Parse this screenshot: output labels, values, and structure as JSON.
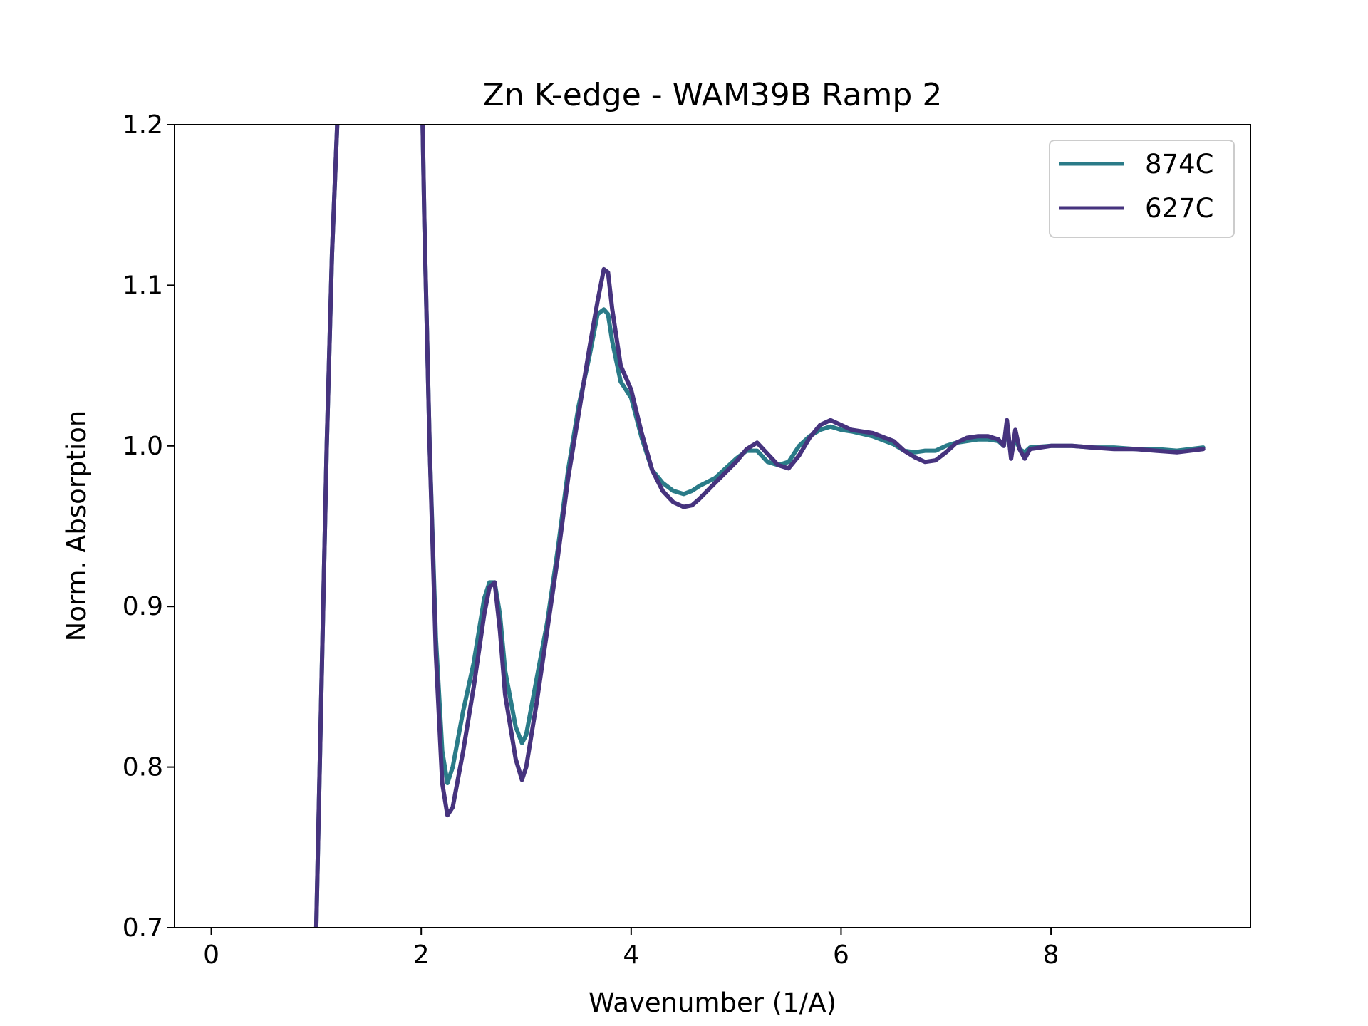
{
  "chart_data": {
    "type": "line",
    "title": "Zn K-edge - WAM39B Ramp 2",
    "xlabel": "Wavenumber (1/A)",
    "ylabel": "Norm. Absorption",
    "xlim": [
      -0.35,
      9.9
    ],
    "ylim": [
      0.7,
      1.2
    ],
    "xticks": [
      0,
      2,
      4,
      6,
      8
    ],
    "xtick_labels": [
      "0",
      "2",
      "4",
      "6",
      "8"
    ],
    "yticks": [
      0.7,
      0.8,
      0.9,
      1.0,
      1.1,
      1.2
    ],
    "ytick_labels": [
      "0.7",
      "0.8",
      "0.9",
      "1.0",
      "1.1",
      "1.2"
    ],
    "grid": false,
    "legend_position": "top-right",
    "legend": [
      "874C",
      "627C"
    ],
    "series": [
      {
        "name": "874C",
        "color": "#2a7b88",
        "x": [
          1.0,
          1.05,
          1.1,
          1.15,
          1.2,
          1.23,
          2.0,
          2.03,
          2.08,
          2.14,
          2.2,
          2.25,
          2.3,
          2.4,
          2.5,
          2.6,
          2.65,
          2.7,
          2.75,
          2.8,
          2.9,
          2.96,
          3.0,
          3.1,
          3.2,
          3.3,
          3.4,
          3.5,
          3.6,
          3.68,
          3.74,
          3.78,
          3.82,
          3.9,
          4.0,
          4.1,
          4.2,
          4.3,
          4.4,
          4.5,
          4.58,
          4.65,
          4.8,
          5.0,
          5.1,
          5.2,
          5.3,
          5.4,
          5.5,
          5.6,
          5.7,
          5.8,
          5.9,
          6.0,
          6.1,
          6.3,
          6.5,
          6.6,
          6.7,
          6.8,
          6.9,
          7.0,
          7.1,
          7.2,
          7.3,
          7.4,
          7.5,
          7.55,
          7.58,
          7.62,
          7.66,
          7.7,
          7.75,
          7.8,
          8.0,
          8.2,
          8.4,
          8.6,
          8.8,
          9.0,
          9.2,
          9.45
        ],
        "y": [
          0.7,
          0.85,
          1.0,
          1.12,
          1.2,
          1.25,
          1.25,
          1.14,
          1.0,
          0.88,
          0.81,
          0.79,
          0.8,
          0.835,
          0.865,
          0.905,
          0.915,
          0.915,
          0.895,
          0.86,
          0.825,
          0.815,
          0.82,
          0.855,
          0.89,
          0.935,
          0.985,
          1.025,
          1.055,
          1.082,
          1.085,
          1.082,
          1.065,
          1.04,
          1.03,
          1.005,
          0.985,
          0.977,
          0.972,
          0.97,
          0.972,
          0.975,
          0.98,
          0.992,
          0.997,
          0.997,
          0.99,
          0.988,
          0.99,
          1.0,
          1.006,
          1.01,
          1.012,
          1.01,
          1.009,
          1.006,
          1.001,
          0.997,
          0.996,
          0.997,
          0.997,
          1.0,
          1.002,
          1.003,
          1.004,
          1.004,
          1.003,
          1.0,
          1.012,
          0.994,
          1.005,
          0.998,
          0.996,
          0.999,
          1.0,
          1.0,
          0.999,
          0.999,
          0.998,
          0.998,
          0.997,
          0.999
        ]
      },
      {
        "name": "627C",
        "color": "#46337e",
        "x": [
          1.0,
          1.05,
          1.1,
          1.15,
          1.2,
          1.23,
          2.0,
          2.03,
          2.08,
          2.14,
          2.2,
          2.25,
          2.3,
          2.4,
          2.5,
          2.6,
          2.65,
          2.7,
          2.75,
          2.8,
          2.9,
          2.96,
          3.0,
          3.1,
          3.2,
          3.3,
          3.4,
          3.5,
          3.6,
          3.68,
          3.74,
          3.78,
          3.82,
          3.9,
          4.0,
          4.1,
          4.2,
          4.3,
          4.4,
          4.5,
          4.58,
          4.65,
          4.8,
          5.0,
          5.1,
          5.2,
          5.3,
          5.4,
          5.5,
          5.6,
          5.7,
          5.8,
          5.9,
          6.0,
          6.1,
          6.3,
          6.5,
          6.6,
          6.7,
          6.8,
          6.9,
          7.0,
          7.1,
          7.2,
          7.3,
          7.4,
          7.5,
          7.55,
          7.58,
          7.62,
          7.66,
          7.7,
          7.75,
          7.8,
          8.0,
          8.2,
          8.4,
          8.6,
          8.8,
          9.0,
          9.2,
          9.45
        ],
        "y": [
          0.7,
          0.85,
          1.0,
          1.12,
          1.2,
          1.25,
          1.25,
          1.14,
          1.0,
          0.87,
          0.79,
          0.77,
          0.775,
          0.81,
          0.85,
          0.895,
          0.912,
          0.915,
          0.885,
          0.845,
          0.805,
          0.792,
          0.8,
          0.84,
          0.885,
          0.93,
          0.98,
          1.02,
          1.06,
          1.09,
          1.11,
          1.108,
          1.085,
          1.05,
          1.035,
          1.008,
          0.985,
          0.972,
          0.965,
          0.962,
          0.963,
          0.967,
          0.977,
          0.99,
          0.998,
          1.002,
          0.995,
          0.988,
          0.986,
          0.994,
          1.005,
          1.013,
          1.016,
          1.013,
          1.01,
          1.008,
          1.003,
          0.997,
          0.993,
          0.99,
          0.991,
          0.996,
          1.002,
          1.005,
          1.006,
          1.006,
          1.004,
          1.0,
          1.016,
          0.992,
          1.01,
          0.998,
          0.992,
          0.998,
          1.0,
          1.0,
          0.999,
          0.998,
          0.998,
          0.997,
          0.996,
          0.998
        ]
      }
    ]
  }
}
